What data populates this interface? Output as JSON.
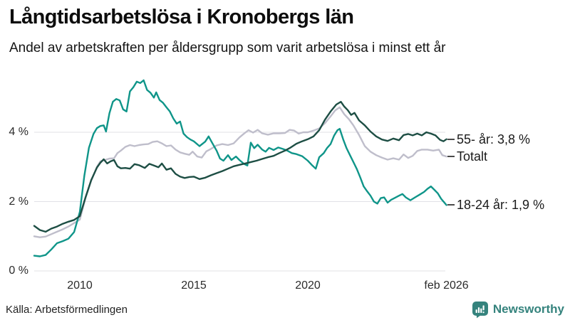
{
  "chart_data": {
    "type": "line",
    "title": "Långtidsarbetslösa i Kronobergs län",
    "subtitle": "Andel av arbetskraften per åldersgrupp som varit arbetslösa i minst ett år",
    "source": "Källa: Arbetsförmedlingen",
    "legend_position": "right-end-labels",
    "grid": true,
    "x_axis": {
      "range_years": [
        2008.0,
        2026.17
      ],
      "ticks": [
        {
          "label": "2010",
          "year": 2010
        },
        {
          "label": "2015",
          "year": 2015
        },
        {
          "label": "2020",
          "year": 2020
        },
        {
          "label": "feb 2026",
          "year": 2026.08
        }
      ]
    },
    "y_axis": {
      "unit": "%",
      "range": [
        0,
        5.6
      ],
      "ticks": [
        {
          "label": "0 %",
          "value": 0
        },
        {
          "label": "2 %",
          "value": 2
        },
        {
          "label": "4 %",
          "value": 4
        }
      ],
      "gridline_color": "#e1e1e6"
    },
    "series": [
      {
        "id": "55-ar",
        "name": "55- år",
        "end_label": "55- år: 3,8 %",
        "latest_value_label": "3,8 %",
        "color": "#1d4e44",
        "z": 2,
        "points": [
          [
            2008.0,
            1.3
          ],
          [
            2008.25,
            1.18
          ],
          [
            2008.5,
            1.13
          ],
          [
            2008.75,
            1.22
          ],
          [
            2009.0,
            1.28
          ],
          [
            2009.25,
            1.36
          ],
          [
            2009.5,
            1.42
          ],
          [
            2009.75,
            1.47
          ],
          [
            2010.0,
            1.58
          ],
          [
            2010.25,
            2.12
          ],
          [
            2010.5,
            2.62
          ],
          [
            2010.75,
            2.98
          ],
          [
            2010.9,
            3.12
          ],
          [
            2011.05,
            3.22
          ],
          [
            2011.2,
            3.1
          ],
          [
            2011.35,
            3.16
          ],
          [
            2011.5,
            3.2
          ],
          [
            2011.65,
            3.02
          ],
          [
            2011.8,
            2.96
          ],
          [
            2012.0,
            2.97
          ],
          [
            2012.2,
            2.95
          ],
          [
            2012.4,
            3.08
          ],
          [
            2012.6,
            3.05
          ],
          [
            2012.85,
            2.97
          ],
          [
            2013.05,
            3.09
          ],
          [
            2013.25,
            3.04
          ],
          [
            2013.45,
            2.99
          ],
          [
            2013.6,
            3.1
          ],
          [
            2013.8,
            2.92
          ],
          [
            2014.0,
            2.96
          ],
          [
            2014.2,
            2.8
          ],
          [
            2014.4,
            2.72
          ],
          [
            2014.6,
            2.68
          ],
          [
            2014.8,
            2.71
          ],
          [
            2015.0,
            2.72
          ],
          [
            2015.25,
            2.65
          ],
          [
            2015.5,
            2.69
          ],
          [
            2015.75,
            2.76
          ],
          [
            2016.0,
            2.82
          ],
          [
            2016.25,
            2.88
          ],
          [
            2016.5,
            2.95
          ],
          [
            2016.75,
            3.02
          ],
          [
            2017.0,
            3.06
          ],
          [
            2017.25,
            3.1
          ],
          [
            2017.5,
            3.14
          ],
          [
            2017.75,
            3.18
          ],
          [
            2018.0,
            3.23
          ],
          [
            2018.25,
            3.28
          ],
          [
            2018.5,
            3.32
          ],
          [
            2018.75,
            3.4
          ],
          [
            2019.0,
            3.47
          ],
          [
            2019.25,
            3.56
          ],
          [
            2019.5,
            3.67
          ],
          [
            2019.75,
            3.74
          ],
          [
            2020.0,
            3.8
          ],
          [
            2020.25,
            3.88
          ],
          [
            2020.5,
            4.06
          ],
          [
            2020.75,
            4.36
          ],
          [
            2021.0,
            4.6
          ],
          [
            2021.25,
            4.8
          ],
          [
            2021.45,
            4.88
          ],
          [
            2021.6,
            4.74
          ],
          [
            2021.75,
            4.64
          ],
          [
            2021.9,
            4.5
          ],
          [
            2022.05,
            4.56
          ],
          [
            2022.25,
            4.34
          ],
          [
            2022.5,
            4.2
          ],
          [
            2022.75,
            4.02
          ],
          [
            2023.0,
            3.88
          ],
          [
            2023.25,
            3.79
          ],
          [
            2023.5,
            3.75
          ],
          [
            2023.75,
            3.82
          ],
          [
            2024.0,
            3.77
          ],
          [
            2024.2,
            3.92
          ],
          [
            2024.4,
            3.95
          ],
          [
            2024.6,
            3.91
          ],
          [
            2024.8,
            3.96
          ],
          [
            2025.0,
            3.91
          ],
          [
            2025.2,
            4.0
          ],
          [
            2025.4,
            3.96
          ],
          [
            2025.6,
            3.91
          ],
          [
            2025.8,
            3.78
          ],
          [
            2025.95,
            3.74
          ],
          [
            2026.08,
            3.8
          ]
        ]
      },
      {
        "id": "totalt",
        "name": "Totalt",
        "end_label": "Totalt",
        "latest_value_label": "",
        "color": "#bfbecb",
        "z": 0,
        "points": [
          [
            2008.0,
            1.0
          ],
          [
            2008.25,
            0.97
          ],
          [
            2008.5,
            0.99
          ],
          [
            2008.75,
            1.06
          ],
          [
            2009.0,
            1.13
          ],
          [
            2009.25,
            1.2
          ],
          [
            2009.5,
            1.28
          ],
          [
            2009.75,
            1.38
          ],
          [
            2010.0,
            1.48
          ],
          [
            2010.25,
            2.1
          ],
          [
            2010.5,
            2.6
          ],
          [
            2010.75,
            3.0
          ],
          [
            2010.9,
            3.16
          ],
          [
            2011.1,
            3.2
          ],
          [
            2011.3,
            3.24
          ],
          [
            2011.5,
            3.25
          ],
          [
            2011.65,
            3.4
          ],
          [
            2011.8,
            3.47
          ],
          [
            2012.0,
            3.58
          ],
          [
            2012.2,
            3.63
          ],
          [
            2012.4,
            3.6
          ],
          [
            2012.6,
            3.63
          ],
          [
            2012.8,
            3.65
          ],
          [
            2013.0,
            3.66
          ],
          [
            2013.2,
            3.72
          ],
          [
            2013.4,
            3.74
          ],
          [
            2013.6,
            3.68
          ],
          [
            2013.8,
            3.6
          ],
          [
            2014.0,
            3.62
          ],
          [
            2014.2,
            3.5
          ],
          [
            2014.4,
            3.42
          ],
          [
            2014.6,
            3.38
          ],
          [
            2014.8,
            3.35
          ],
          [
            2014.95,
            3.44
          ],
          [
            2015.15,
            3.3
          ],
          [
            2015.35,
            3.27
          ],
          [
            2015.55,
            3.45
          ],
          [
            2015.75,
            3.52
          ],
          [
            2016.0,
            3.62
          ],
          [
            2016.25,
            3.66
          ],
          [
            2016.5,
            3.63
          ],
          [
            2016.75,
            3.68
          ],
          [
            2017.0,
            3.85
          ],
          [
            2017.2,
            3.96
          ],
          [
            2017.4,
            4.06
          ],
          [
            2017.6,
            3.99
          ],
          [
            2017.8,
            4.07
          ],
          [
            2018.0,
            3.97
          ],
          [
            2018.25,
            3.93
          ],
          [
            2018.5,
            3.97
          ],
          [
            2018.75,
            3.97
          ],
          [
            2019.0,
            3.98
          ],
          [
            2019.2,
            4.07
          ],
          [
            2019.4,
            4.05
          ],
          [
            2019.6,
            3.96
          ],
          [
            2019.8,
            4.0
          ],
          [
            2020.0,
            4.0
          ],
          [
            2020.25,
            4.05
          ],
          [
            2020.5,
            4.11
          ],
          [
            2020.75,
            4.26
          ],
          [
            2021.0,
            4.46
          ],
          [
            2021.2,
            4.63
          ],
          [
            2021.4,
            4.72
          ],
          [
            2021.6,
            4.52
          ],
          [
            2021.8,
            4.38
          ],
          [
            2022.0,
            4.2
          ],
          [
            2022.25,
            3.92
          ],
          [
            2022.5,
            3.6
          ],
          [
            2022.75,
            3.44
          ],
          [
            2023.0,
            3.34
          ],
          [
            2023.25,
            3.27
          ],
          [
            2023.5,
            3.21
          ],
          [
            2023.75,
            3.25
          ],
          [
            2024.0,
            3.21
          ],
          [
            2024.2,
            3.36
          ],
          [
            2024.4,
            3.26
          ],
          [
            2024.6,
            3.32
          ],
          [
            2024.8,
            3.46
          ],
          [
            2025.0,
            3.5
          ],
          [
            2025.25,
            3.5
          ],
          [
            2025.5,
            3.47
          ],
          [
            2025.75,
            3.5
          ],
          [
            2025.9,
            3.34
          ],
          [
            2026.08,
            3.3
          ]
        ]
      },
      {
        "id": "18-24-ar",
        "name": "18-24 år",
        "end_label": "18-24 år: 1,9 %",
        "latest_value_label": "1,9 %",
        "color": "#0f9589",
        "z": 1,
        "points": [
          [
            2008.0,
            0.44
          ],
          [
            2008.25,
            0.42
          ],
          [
            2008.5,
            0.46
          ],
          [
            2008.75,
            0.62
          ],
          [
            2009.0,
            0.8
          ],
          [
            2009.25,
            0.86
          ],
          [
            2009.5,
            0.93
          ],
          [
            2009.75,
            1.12
          ],
          [
            2010.0,
            1.7
          ],
          [
            2010.2,
            2.75
          ],
          [
            2010.4,
            3.55
          ],
          [
            2010.6,
            3.95
          ],
          [
            2010.75,
            4.12
          ],
          [
            2010.9,
            4.18
          ],
          [
            2011.05,
            4.2
          ],
          [
            2011.15,
            4.02
          ],
          [
            2011.3,
            4.55
          ],
          [
            2011.45,
            4.88
          ],
          [
            2011.6,
            4.96
          ],
          [
            2011.75,
            4.92
          ],
          [
            2011.9,
            4.66
          ],
          [
            2012.05,
            4.6
          ],
          [
            2012.2,
            5.18
          ],
          [
            2012.35,
            5.3
          ],
          [
            2012.5,
            5.46
          ],
          [
            2012.65,
            5.42
          ],
          [
            2012.8,
            5.5
          ],
          [
            2012.95,
            5.22
          ],
          [
            2013.1,
            5.14
          ],
          [
            2013.25,
            5.0
          ],
          [
            2013.35,
            5.15
          ],
          [
            2013.5,
            4.93
          ],
          [
            2013.65,
            4.85
          ],
          [
            2013.8,
            4.72
          ],
          [
            2013.95,
            4.6
          ],
          [
            2014.1,
            4.4
          ],
          [
            2014.25,
            4.25
          ],
          [
            2014.4,
            4.31
          ],
          [
            2014.55,
            3.96
          ],
          [
            2014.7,
            3.86
          ],
          [
            2014.85,
            3.79
          ],
          [
            2015.0,
            3.74
          ],
          [
            2015.25,
            3.6
          ],
          [
            2015.5,
            3.73
          ],
          [
            2015.65,
            3.88
          ],
          [
            2015.8,
            3.7
          ],
          [
            2016.0,
            3.47
          ],
          [
            2016.15,
            3.24
          ],
          [
            2016.3,
            3.18
          ],
          [
            2016.5,
            3.34
          ],
          [
            2016.65,
            3.2
          ],
          [
            2016.85,
            3.3
          ],
          [
            2017.0,
            3.2
          ],
          [
            2017.2,
            3.09
          ],
          [
            2017.35,
            3.04
          ],
          [
            2017.5,
            3.7
          ],
          [
            2017.65,
            3.54
          ],
          [
            2017.8,
            3.64
          ],
          [
            2018.0,
            3.5
          ],
          [
            2018.15,
            3.44
          ],
          [
            2018.3,
            3.55
          ],
          [
            2018.5,
            3.49
          ],
          [
            2018.7,
            3.56
          ],
          [
            2018.9,
            3.52
          ],
          [
            2019.1,
            3.47
          ],
          [
            2019.3,
            3.4
          ],
          [
            2019.5,
            3.37
          ],
          [
            2019.75,
            3.31
          ],
          [
            2020.0,
            3.18
          ],
          [
            2020.2,
            3.04
          ],
          [
            2020.35,
            2.95
          ],
          [
            2020.5,
            3.28
          ],
          [
            2020.7,
            3.4
          ],
          [
            2020.85,
            3.55
          ],
          [
            2021.0,
            3.66
          ],
          [
            2021.15,
            3.9
          ],
          [
            2021.3,
            4.06
          ],
          [
            2021.4,
            4.1
          ],
          [
            2021.55,
            3.8
          ],
          [
            2021.7,
            3.54
          ],
          [
            2021.85,
            3.34
          ],
          [
            2022.0,
            3.14
          ],
          [
            2022.15,
            2.94
          ],
          [
            2022.3,
            2.7
          ],
          [
            2022.45,
            2.44
          ],
          [
            2022.6,
            2.3
          ],
          [
            2022.75,
            2.17
          ],
          [
            2022.9,
            2.0
          ],
          [
            2023.05,
            1.94
          ],
          [
            2023.2,
            2.1
          ],
          [
            2023.35,
            2.12
          ],
          [
            2023.5,
            1.97
          ],
          [
            2023.65,
            2.05
          ],
          [
            2023.8,
            2.1
          ],
          [
            2024.0,
            2.17
          ],
          [
            2024.15,
            2.22
          ],
          [
            2024.3,
            2.12
          ],
          [
            2024.5,
            2.04
          ],
          [
            2024.7,
            2.12
          ],
          [
            2024.9,
            2.2
          ],
          [
            2025.1,
            2.28
          ],
          [
            2025.25,
            2.37
          ],
          [
            2025.4,
            2.44
          ],
          [
            2025.55,
            2.34
          ],
          [
            2025.7,
            2.24
          ],
          [
            2025.85,
            2.08
          ],
          [
            2026.08,
            1.9
          ]
        ]
      }
    ]
  },
  "branding": {
    "name": "Newsworthy",
    "icon": "bar-chart-speech-bubble",
    "color": "#35837d"
  }
}
